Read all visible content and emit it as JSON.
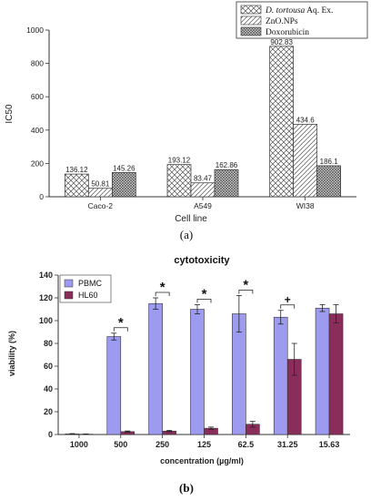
{
  "panels": {
    "a_label": "(a)",
    "b_label": "(b)"
  },
  "chart_data": [
    {
      "type": "bar",
      "title": "",
      "xlabel": "Cell line",
      "ylabel": "IC50",
      "ylim": [
        0,
        1000
      ],
      "yticks": [
        0,
        200,
        400,
        600,
        800,
        1000
      ],
      "grid": false,
      "legend_position": "top-right",
      "categories": [
        "Caco-2",
        "A549",
        "WI38"
      ],
      "series": [
        {
          "name": "D. tortousa Aq. Ex.",
          "name_italic": "D. tortousa",
          "name_rest": " Aq. Ex.",
          "pattern": "crosshatch",
          "values": [
            136.12,
            193.12,
            902.83
          ],
          "labels": [
            "136.12",
            "193.12",
            "902.83"
          ]
        },
        {
          "name": "ZnO.NPs",
          "pattern": "diagonal",
          "values": [
            50.81,
            83.47,
            434.6
          ],
          "labels": [
            "50.81",
            "83.47",
            "434.6"
          ]
        },
        {
          "name": "Doxorubicin",
          "pattern": "dense-crosshatch",
          "values": [
            145.26,
            162.86,
            186.1
          ],
          "labels": [
            "145.26",
            "162.86",
            "186.1"
          ]
        }
      ]
    },
    {
      "type": "bar",
      "title": "cytotoxicity",
      "xlabel": "concentration (µg/ml)",
      "ylabel": "viability (%)",
      "ylim": [
        0,
        140
      ],
      "yticks": [
        0,
        20,
        40,
        60,
        80,
        100,
        120,
        140
      ],
      "grid": false,
      "legend_position": "top-left",
      "categories": [
        "1000",
        "500",
        "250",
        "125",
        "62.5",
        "31.25",
        "15.63"
      ],
      "series": [
        {
          "name": "PBMC",
          "color": "#9d9bf0",
          "values": [
            0.5,
            86,
            115,
            110,
            106,
            103,
            111
          ],
          "errors": [
            0.3,
            3,
            5,
            4,
            16,
            6,
            3
          ]
        },
        {
          "name": "HL60",
          "color": "#8a2d5a",
          "values": [
            0.3,
            2.5,
            3,
            5.5,
            9,
            66,
            106
          ],
          "errors": [
            0.2,
            0.6,
            0.6,
            1,
            2.5,
            14,
            8
          ]
        }
      ],
      "significance": [
        {
          "category": "500",
          "mark": "*"
        },
        {
          "category": "250",
          "mark": "*"
        },
        {
          "category": "125",
          "mark": "*"
        },
        {
          "category": "62.5",
          "mark": "*"
        },
        {
          "category": "31.25",
          "mark": "+"
        }
      ]
    }
  ]
}
